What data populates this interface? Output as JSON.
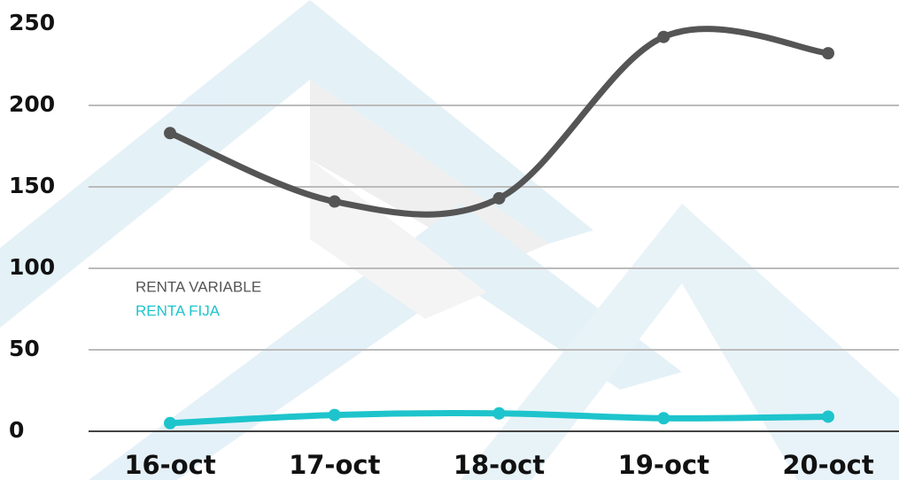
{
  "chart_data": {
    "type": "line",
    "categories": [
      "16-oct",
      "17-oct",
      "18-oct",
      "19-oct",
      "20-oct"
    ],
    "series": [
      {
        "name": "RENTA VARIABLE",
        "color": "#555555",
        "values": [
          183,
          141,
          143,
          242,
          232
        ]
      },
      {
        "name": "RENTA FIJA",
        "color": "#1ec4cc",
        "values": [
          5,
          10,
          11,
          8,
          9
        ]
      }
    ],
    "ylim": [
      0,
      250
    ],
    "yticks": [
      0,
      50,
      100,
      150,
      200,
      250
    ],
    "grid": true,
    "smooth": true
  }
}
